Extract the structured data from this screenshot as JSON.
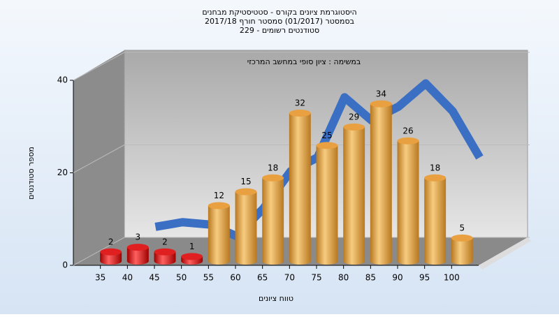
{
  "chart_data": {
    "type": "bar",
    "title": [
      "היסטוגרמת ציונים בקורס - סטטיסטיקת מבחנים",
      "בסמסטר  (01/2017)  סמסטר חורף 2017/18",
      "סטודנטים רשומים - 229"
    ],
    "subtitle": "במשימה : ציון סופי במחשב המרכזי",
    "x_label": "טווח ציונים",
    "y_label": "מספר סטודנטים",
    "categories": [
      "35",
      "40",
      "45",
      "50",
      "55",
      "60",
      "65",
      "70",
      "75",
      "80",
      "85",
      "90",
      "95",
      "100"
    ],
    "values": [
      2,
      3,
      2,
      1,
      12,
      15,
      18,
      32,
      25,
      29,
      34,
      26,
      18,
      5
    ],
    "colors": [
      "#e02020",
      "#e02020",
      "#e02020",
      "#e02020",
      "#e8a040",
      "#e8a040",
      "#e8a040",
      "#e8a040",
      "#e8a040",
      "#e8a040",
      "#e8a040",
      "#e8a040",
      "#e8a040",
      "#e8a040"
    ],
    "line": {
      "color": "#3a6fc4",
      "values": [
        null,
        5,
        6,
        5.5,
        3,
        9,
        17,
        20,
        33,
        28,
        31,
        36,
        30,
        20
      ]
    },
    "ylim": [
      0,
      40
    ],
    "yticks": [
      0,
      20,
      40
    ],
    "grid": true
  }
}
